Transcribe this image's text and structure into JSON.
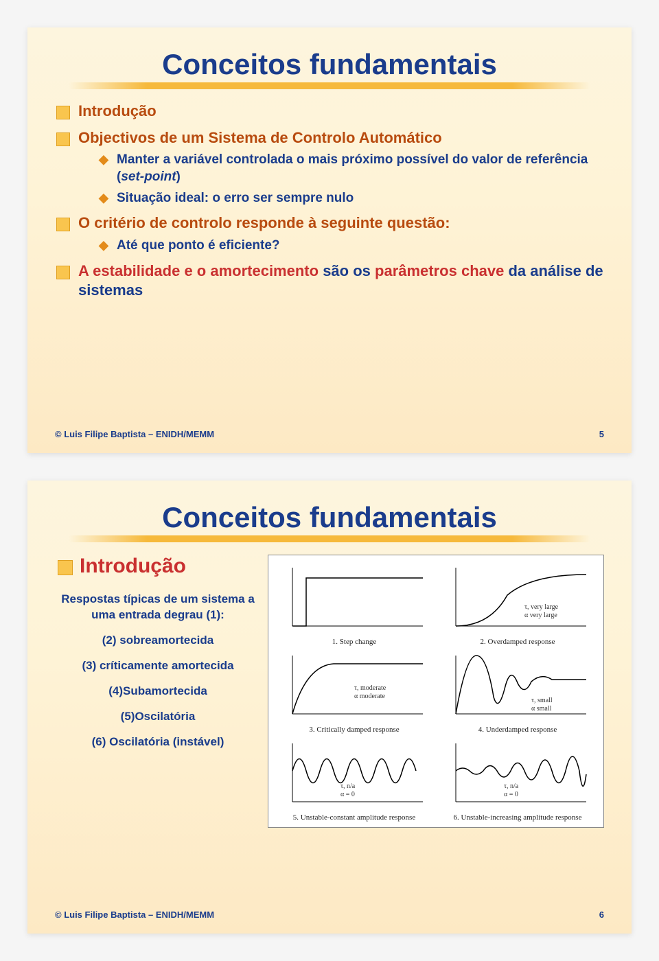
{
  "slide1": {
    "title": "Conceitos fundamentais",
    "bullets": [
      {
        "text": "Introdução"
      },
      {
        "text": "Objectivos de um Sistema de Controlo Automático",
        "subs": [
          {
            "html": "Manter a variável controlada o mais próximo possível do valor de referência (<span class='ital'>set-point</span>)"
          },
          {
            "html": "Situação ideal: o erro ser sempre nulo"
          }
        ]
      },
      {
        "text": "O critério de controlo responde à seguinte questão:",
        "subs": [
          {
            "html": "Até que ponto é eficiente?"
          }
        ]
      },
      {
        "html": "<span class='highlight-red'>A estabilidade e o amortecimento</span> <span class='highlight-blue'>são os</span> <span class='highlight-red'>parâmetros chave</span> <span class='highlight-blue'>da análise de sistemas</span>"
      }
    ],
    "footer_author": "© Luis Filipe Baptista – ENIDH/MEMM",
    "page": "5"
  },
  "slide2": {
    "title": "Conceitos fundamentais",
    "intro": "Introdução",
    "resp_title": "Respostas típicas de um sistema a uma entrada degrau (1):",
    "resp_items": [
      "(2) sobreamortecida",
      "(3) críticamente amortecida",
      "(4)Subamortecida",
      "(5)Oscilatória",
      "(6) Oscilatória (instável)"
    ],
    "charts": [
      {
        "caption": "1. Step change",
        "label1": "",
        "label2": ""
      },
      {
        "caption": "2. Overdamped response",
        "label1": "τ, very large",
        "label2": "α  very large"
      },
      {
        "caption": "3. Critically damped response",
        "label1": "τ,  moderate",
        "label2": "α  moderate"
      },
      {
        "caption": "4. Underdamped response",
        "label1": "τ,  small",
        "label2": "α  small"
      },
      {
        "caption": "5. Unstable-constant amplitude response",
        "label1": "τ,  n/a",
        "label2": "α = 0"
      },
      {
        "caption": "6. Unstable-increasing amplitude response",
        "label1": "τ,  n/a",
        "label2": "α = 0"
      }
    ],
    "footer_author": "© Luis Filipe Baptista – ENIDH/MEMM",
    "page": "6",
    "styling": {
      "title_color": "#1a3c8c",
      "bullet_color": "#b84b0f",
      "sub_bullet_color": "#1a3c8c",
      "bullet_marker_color": "#f9c54e",
      "diamond_marker_color": "#e38b1a",
      "underline_color": "#f6b93b",
      "background_gradient": [
        "#fdf5de",
        "#fde9c4"
      ],
      "chart_stroke": "#000000",
      "chart_bg": "#ffffff"
    }
  }
}
